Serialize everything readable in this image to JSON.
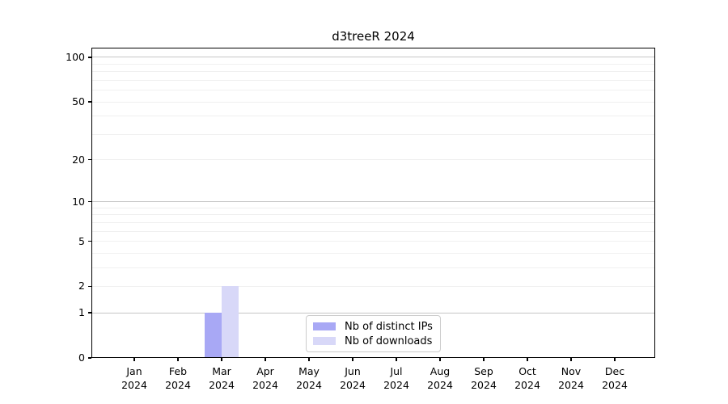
{
  "title": "d3treeR 2024",
  "chart_data": {
    "type": "bar",
    "title": "d3treeR 2024",
    "categories": [
      {
        "month": "Jan",
        "year": "2024"
      },
      {
        "month": "Feb",
        "year": "2024"
      },
      {
        "month": "Mar",
        "year": "2024"
      },
      {
        "month": "Apr",
        "year": "2024"
      },
      {
        "month": "May",
        "year": "2024"
      },
      {
        "month": "Jun",
        "year": "2024"
      },
      {
        "month": "Jul",
        "year": "2024"
      },
      {
        "month": "Aug",
        "year": "2024"
      },
      {
        "month": "Sep",
        "year": "2024"
      },
      {
        "month": "Oct",
        "year": "2024"
      },
      {
        "month": "Nov",
        "year": "2024"
      },
      {
        "month": "Dec",
        "year": "2024"
      }
    ],
    "series": [
      {
        "name": "Nb of distinct IPs",
        "color": "#a8a8f5",
        "values": [
          0,
          0,
          1,
          0,
          0,
          0,
          0,
          0,
          0,
          0,
          0,
          0
        ]
      },
      {
        "name": "Nb of downloads",
        "color": "#d8d8f8",
        "values": [
          0,
          0,
          2,
          0,
          0,
          0,
          0,
          0,
          0,
          0,
          0,
          0
        ]
      }
    ],
    "y_ticks": [
      100,
      50,
      20,
      10,
      5,
      2,
      1,
      0
    ],
    "y_scale": "log1p",
    "ylim": [
      0,
      117
    ],
    "grid": {
      "major_lines": [
        1,
        10,
        100
      ],
      "minor_lines": [
        2,
        3,
        4,
        5,
        6,
        7,
        8,
        9,
        20,
        30,
        40,
        50,
        60,
        70,
        80,
        90
      ]
    },
    "legend_position": "bottom-center-inside",
    "xlabel": "",
    "ylabel": ""
  },
  "colors": {
    "background": "#ffffff",
    "axis": "#000000",
    "major_grid": "#c6c6c6",
    "minor_grid": "#f0f0f0",
    "legend_border": "#cccccc"
  }
}
